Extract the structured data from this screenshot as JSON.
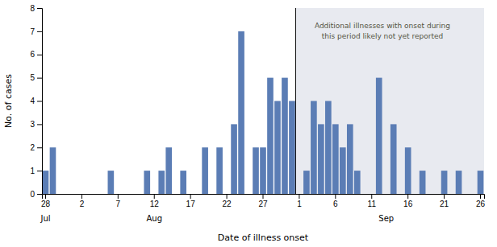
{
  "chart_data": {
    "type": "bar",
    "xlabel": "Date of illness onset",
    "ylabel": "No. of cases",
    "color": "#5b7db5",
    "ylim": [
      0,
      8
    ],
    "yticks": [
      0,
      1,
      2,
      3,
      4,
      5,
      6,
      7,
      8
    ],
    "grid": false,
    "categories": [
      "28",
      null,
      null,
      null,
      null,
      "2",
      null,
      null,
      null,
      null,
      "7",
      null,
      null,
      null,
      null,
      "12",
      null,
      null,
      null,
      null,
      "17",
      null,
      null,
      null,
      null,
      "22",
      null,
      null,
      null,
      null,
      "27",
      null,
      null,
      null,
      null,
      "1",
      null,
      null,
      null,
      null,
      "6",
      null,
      null,
      null,
      null,
      "11",
      null,
      null,
      null,
      null,
      "16",
      null,
      null,
      null,
      null,
      "21",
      null,
      null,
      null,
      null,
      "26"
    ],
    "values": [
      1,
      2,
      0,
      0,
      0,
      0,
      0,
      0,
      0,
      1,
      0,
      0,
      0,
      0,
      1,
      0,
      1,
      2,
      0,
      1,
      0,
      0,
      2,
      0,
      2,
      0,
      3,
      7,
      0,
      2,
      2,
      5,
      4,
      5,
      4,
      0,
      1,
      4,
      3,
      4,
      3,
      2,
      3,
      1,
      0,
      0,
      5,
      0,
      3,
      0,
      2,
      0,
      1,
      0,
      0,
      1,
      0,
      1,
      0,
      0,
      1
    ],
    "month_labels": [
      {
        "label": "Jul",
        "index": 0
      },
      {
        "label": "Aug",
        "index": 15
      },
      {
        "label": "Sep",
        "index": 47
      }
    ],
    "highlight": {
      "from": 35,
      "color": "#e8eaf0"
    },
    "annotation": [
      "Additional illnesses with onset during",
      "this period likely not yet reported"
    ],
    "annotation_color": "#555544"
  }
}
